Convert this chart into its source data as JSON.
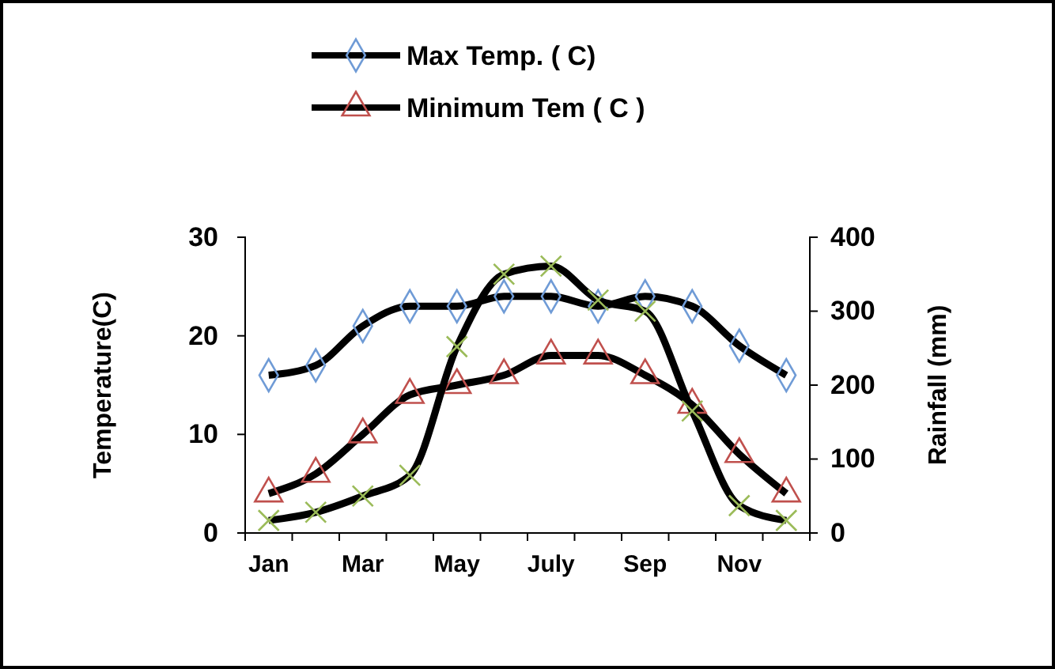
{
  "chart_data": {
    "type": "line",
    "ylabel": "Temperature(C)",
    "y2label": "Rainfall (mm)",
    "categories": [
      "Jan",
      null,
      "Mar",
      null,
      "May",
      null,
      "July",
      null,
      "Sep",
      null,
      "Nov",
      null
    ],
    "series": [
      {
        "name": "Max Temp. ( C)",
        "color": "#6f9bd6",
        "marker": "diamond",
        "values": [
          16,
          17,
          21,
          23,
          23,
          24,
          24,
          23,
          24,
          23,
          19,
          16
        ]
      },
      {
        "name": "Minimum Tem ( C )",
        "color": "#c0504d",
        "marker": "triangle",
        "values": [
          4,
          6,
          10,
          14,
          15,
          16,
          18,
          18,
          16,
          13,
          8,
          4
        ]
      },
      {
        "color": "#9bbb59",
        "marker": "cross",
        "axis": "y2",
        "values": [
          17,
          28,
          50,
          78,
          252,
          350,
          361,
          315,
          300,
          165,
          37,
          17
        ]
      }
    ],
    "ylim": [
      0,
      30
    ],
    "yticks": [
      0,
      10,
      20,
      30
    ],
    "y2lim": [
      0,
      400
    ],
    "y2ticks": [
      0,
      100,
      200,
      300,
      400
    ],
    "grid": false,
    "legend": "top"
  }
}
